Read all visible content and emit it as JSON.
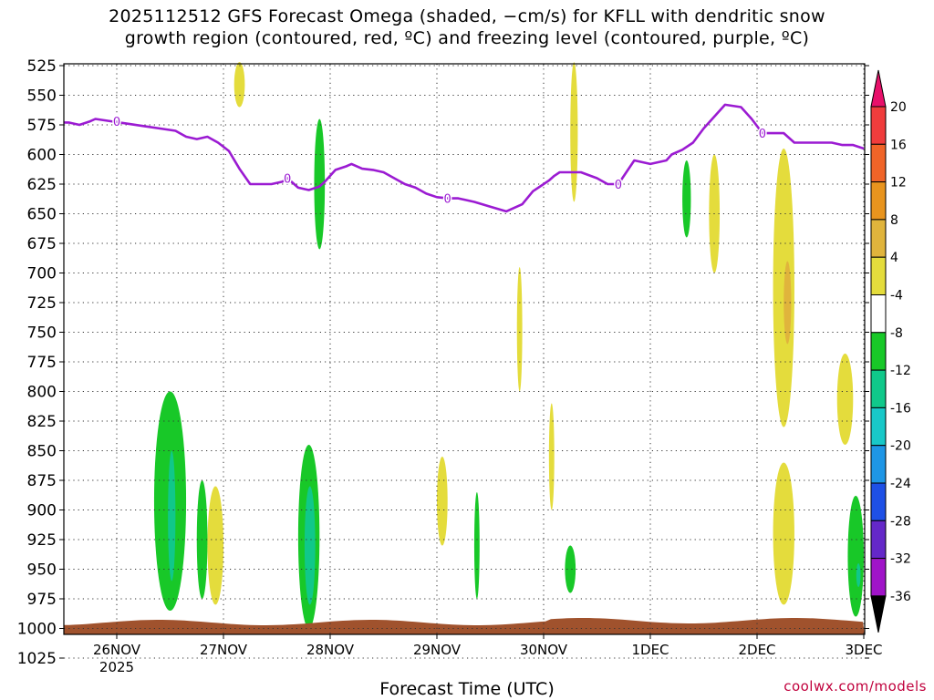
{
  "title": {
    "line1": "2025112512 GFS Forecast Omega (shaded, −cm/s) for KFLL with dendritic snow",
    "line2": "growth region (contoured, red, ºC) and freezing level (contoured, purple, ºC)"
  },
  "credit": "coolwx.com/models",
  "chart_data": {
    "type": "heatmap",
    "title": "2025112512 GFS Forecast Omega (shaded, −cm/s) for KFLL with dendritic snow growth region (contoured, red, ºC) and freezing level (contoured, purple, ºC)",
    "xlabel": "Forecast Time (UTC)",
    "ylabel": "",
    "x_ticks": [
      "26NOV",
      "27NOV",
      "28NOV",
      "29NOV",
      "30NOV",
      "1DEC",
      "2DEC",
      "3DEC"
    ],
    "x_tick_sub": "2025",
    "y_ticks": [
      525,
      550,
      575,
      600,
      625,
      650,
      675,
      700,
      725,
      750,
      775,
      800,
      825,
      850,
      875,
      900,
      925,
      950,
      975,
      1000,
      1025
    ],
    "ylim": [
      1025,
      525
    ],
    "xlim": [
      -0.5,
      7.0
    ],
    "grid": true,
    "colorbar": {
      "labels": [
        20,
        16,
        12,
        8,
        4,
        -4,
        -8,
        -12,
        -16,
        -20,
        -24,
        -28,
        -32,
        -36
      ],
      "colors": [
        "#e8106a",
        "#f03c3c",
        "#f06428",
        "#e8941e",
        "#e0b43c",
        "#e4dc3c",
        "#ffffff",
        "#18c828",
        "#10c88a",
        "#18c8c8",
        "#1e96e6",
        "#1e50e6",
        "#6428c8",
        "#a014c8",
        "#b4b4b4",
        "#000000"
      ]
    },
    "freezing_level": {
      "label": "0",
      "x": [
        -0.5,
        -0.45,
        -0.35,
        -0.25,
        -0.2,
        -0.05,
        0.1,
        0.25,
        0.4,
        0.55,
        0.65,
        0.75,
        0.85,
        0.95,
        1.05,
        1.15,
        1.25,
        1.35,
        1.45,
        1.55,
        1.6,
        1.7,
        1.8,
        1.9,
        1.95,
        2.05,
        2.15,
        2.2,
        2.3,
        2.4,
        2.5,
        2.6,
        2.7,
        2.8,
        2.9,
        3.0,
        3.1,
        3.2,
        3.35,
        3.5,
        3.65,
        3.8,
        3.9,
        4.0,
        4.05,
        4.1,
        4.15,
        4.25,
        4.35,
        4.5,
        4.6,
        4.7,
        4.85,
        5.0,
        5.15,
        5.2,
        5.3,
        5.4,
        5.5,
        5.6,
        5.7,
        5.85,
        5.95,
        6.05,
        6.15,
        6.25,
        6.35,
        6.45,
        6.5,
        6.6,
        6.7,
        6.8,
        6.9,
        7.0
      ],
      "y": [
        573,
        573,
        575,
        572,
        570,
        572,
        574,
        576,
        578,
        580,
        585,
        587,
        585,
        590,
        597,
        612,
        625,
        625,
        625,
        623,
        620,
        628,
        630,
        627,
        623,
        613,
        610,
        608,
        612,
        613,
        615,
        620,
        625,
        628,
        633,
        636,
        637,
        637,
        640,
        644,
        648,
        642,
        631,
        625,
        622,
        618,
        615,
        615,
        615,
        620,
        625,
        625,
        605,
        608,
        605,
        600,
        596,
        590,
        578,
        568,
        558,
        560,
        570,
        582,
        582,
        582,
        590,
        590,
        590,
        590,
        590,
        592,
        592,
        595
      ]
    },
    "omega_shaded": [
      {
        "value": -4,
        "x": [
          0.35,
          0.65
        ],
        "p": [
          800,
          985
        ]
      },
      {
        "value": -4,
        "x": [
          0.75,
          0.85
        ],
        "p": [
          875,
          975
        ]
      },
      {
        "value": -4,
        "x": [
          1.7,
          1.9
        ],
        "p": [
          845,
          1000
        ]
      },
      {
        "value": -4,
        "x": [
          1.85,
          1.95
        ],
        "p": [
          570,
          680
        ]
      },
      {
        "value": -4,
        "x": [
          3.35,
          3.4
        ],
        "p": [
          885,
          975
        ]
      },
      {
        "value": -4,
        "x": [
          4.2,
          4.3
        ],
        "p": [
          930,
          970
        ]
      },
      {
        "value": -4,
        "x": [
          5.3,
          5.38
        ],
        "p": [
          605,
          670
        ]
      },
      {
        "value": -4,
        "x": [
          6.85,
          7.0
        ],
        "p": [
          888,
          990
        ]
      },
      {
        "value": -8,
        "x": [
          0.48,
          0.55
        ],
        "p": [
          850,
          960
        ]
      },
      {
        "value": -8,
        "x": [
          1.76,
          1.86
        ],
        "p": [
          880,
          980
        ]
      },
      {
        "value": -8,
        "x": [
          6.93,
          6.97
        ],
        "p": [
          945,
          965
        ]
      },
      {
        "value": 4,
        "x": [
          0.85,
          1.0
        ],
        "p": [
          880,
          980
        ]
      },
      {
        "value": 4,
        "x": [
          3.0,
          3.1
        ],
        "p": [
          855,
          930
        ]
      },
      {
        "value": 4,
        "x": [
          3.75,
          3.8
        ],
        "p": [
          695,
          800
        ]
      },
      {
        "value": 4,
        "x": [
          4.05,
          4.1
        ],
        "p": [
          810,
          900
        ]
      },
      {
        "value": 4,
        "x": [
          5.55,
          5.65
        ],
        "p": [
          600,
          700
        ]
      },
      {
        "value": 4,
        "x": [
          6.15,
          6.35
        ],
        "p": [
          595,
          830
        ]
      },
      {
        "value": 4,
        "x": [
          6.15,
          6.35
        ],
        "p": [
          860,
          980
        ]
      },
      {
        "value": 4,
        "x": [
          6.75,
          6.9
        ],
        "p": [
          768,
          845
        ]
      },
      {
        "value": 4,
        "x": [
          1.1,
          1.2
        ],
        "p": [
          522,
          560
        ]
      },
      {
        "value": 4,
        "x": [
          4.25,
          4.32
        ],
        "p": [
          522,
          640
        ]
      },
      {
        "value": 8,
        "x": [
          6.25,
          6.32
        ],
        "p": [
          690,
          760
        ]
      }
    ]
  }
}
